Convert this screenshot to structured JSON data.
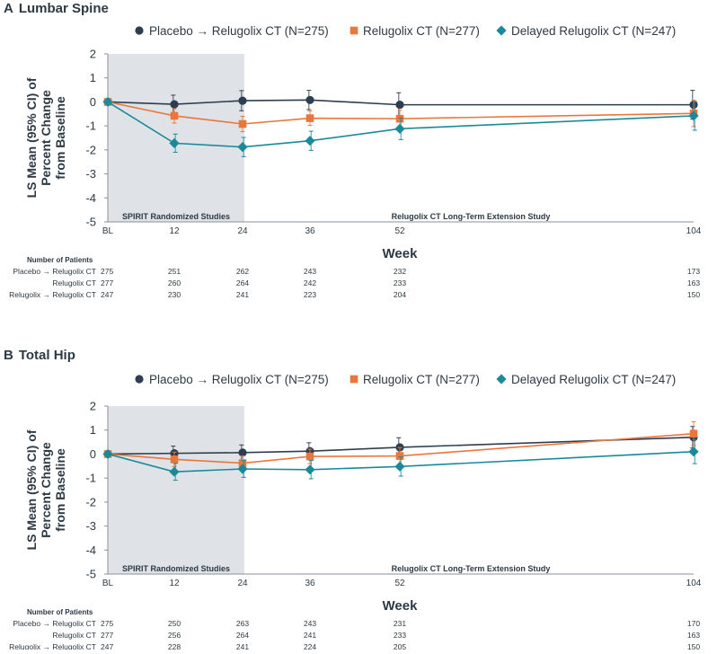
{
  "chart_data": [
    {
      "type": "line",
      "panel_letter": "A",
      "title": "Lumbar Spine",
      "ylabel": [
        "LS Mean (95% CI) of",
        "Percent Change",
        "from Baseline"
      ],
      "xlabel": "Week",
      "categories": [
        "BL",
        "12",
        "24",
        "36",
        "52",
        "104"
      ],
      "x": [
        0,
        12,
        24,
        36,
        52,
        104
      ],
      "ylim": [
        -5,
        2
      ],
      "yticks": [
        "2",
        "1",
        "0",
        "-1",
        "-2",
        "-3",
        "-4",
        "-5"
      ],
      "regions": [
        "SPIRIT Randomized Studies",
        "Relugolix CT Long-Term Extension Study"
      ],
      "series": [
        {
          "name": "Placebo → Relugolix CT (N=275)",
          "color": "#2d3e50",
          "marker": "circle",
          "values": [
            0,
            -0.1,
            0.05,
            0.08,
            -0.12,
            -0.12
          ],
          "err": [
            0,
            0.38,
            0.42,
            0.4,
            0.5,
            0.6
          ]
        },
        {
          "name": "Relugolix CT (N=277)",
          "color": "#e8773d",
          "marker": "square",
          "values": [
            0,
            -0.58,
            -0.92,
            -0.68,
            -0.7,
            -0.48
          ],
          "err": [
            0,
            0.3,
            0.32,
            0.3,
            0.35,
            0.55
          ]
        },
        {
          "name": "Delayed Relugolix CT (N=247)",
          "color": "#1a8a9a",
          "marker": "diamond",
          "values": [
            0,
            -1.72,
            -1.88,
            -1.62,
            -1.12,
            -0.58
          ],
          "err": [
            0,
            0.38,
            0.4,
            0.4,
            0.45,
            0.6
          ]
        }
      ],
      "patients": {
        "header": "Number of Patients",
        "rows": [
          {
            "label": "Placebo → Relugolix CT",
            "counts": [
              "275",
              "251",
              "262",
              "243",
              "232",
              "173"
            ]
          },
          {
            "label": "Relugolix CT",
            "counts": [
              "277",
              "260",
              "264",
              "242",
              "233",
              "163"
            ]
          },
          {
            "label": "Relugolix → Relugolix CT",
            "counts": [
              "247",
              "230",
              "241",
              "223",
              "204",
              "150"
            ]
          }
        ]
      }
    },
    {
      "type": "line",
      "panel_letter": "B",
      "title": "Total Hip",
      "ylabel": [
        "LS Mean (95% CI)  of",
        "Percent Change",
        "from Baseline"
      ],
      "xlabel": "Week",
      "categories": [
        "BL",
        "12",
        "24",
        "36",
        "52",
        "104"
      ],
      "x": [
        0,
        12,
        24,
        36,
        52,
        104
      ],
      "ylim": [
        -5,
        2
      ],
      "yticks": [
        "2",
        "1",
        "0",
        "-1",
        "-2",
        "-3",
        "-4",
        "-5"
      ],
      "regions": [
        "SPIRIT Randomized Studies",
        "Relugolix CT Long-Term Extension Study"
      ],
      "series": [
        {
          "name": "Placebo → Relugolix CT (N=275)",
          "color": "#2d3e50",
          "marker": "circle",
          "values": [
            0,
            0.03,
            0.06,
            0.12,
            0.28,
            0.7
          ],
          "err": [
            0,
            0.3,
            0.32,
            0.35,
            0.4,
            0.45
          ]
        },
        {
          "name": "Relugolix CT (N=277)",
          "color": "#e8773d",
          "marker": "square",
          "values": [
            0,
            -0.22,
            -0.38,
            -0.1,
            -0.08,
            0.85
          ],
          "err": [
            0,
            0.3,
            0.3,
            0.3,
            0.35,
            0.5
          ]
        },
        {
          "name": "Delayed Relugolix CT (N=247)",
          "color": "#1a8a9a",
          "marker": "diamond",
          "values": [
            0,
            -0.74,
            -0.62,
            -0.65,
            -0.52,
            0.1
          ],
          "err": [
            0,
            0.35,
            0.35,
            0.38,
            0.4,
            0.5
          ]
        }
      ],
      "patients": {
        "header": "Number of Patients",
        "rows": [
          {
            "label": "Placebo → Relugolix CT",
            "counts": [
              "275",
              "250",
              "263",
              "243",
              "231",
              "170"
            ]
          },
          {
            "label": "Relugolix CT",
            "counts": [
              "277",
              "256",
              "264",
              "241",
              "233",
              "163"
            ]
          },
          {
            "label": "Relugolix → Relugolix CT",
            "counts": [
              "247",
              "228",
              "241",
              "224",
              "205",
              "150"
            ]
          }
        ]
      }
    }
  ]
}
